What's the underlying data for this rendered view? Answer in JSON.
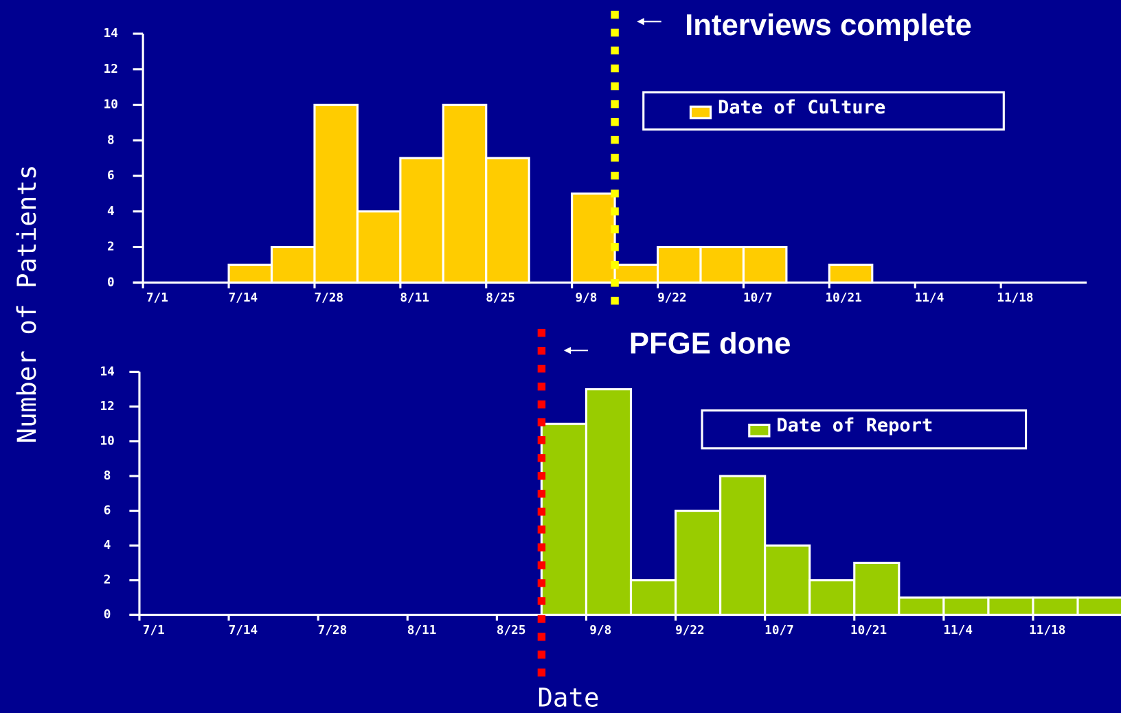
{
  "chart_data": [
    {
      "type": "histogram",
      "ylabel": "Number of Patients",
      "bins": [
        0,
        1,
        2,
        3,
        4,
        5,
        6,
        7,
        8,
        9,
        10,
        11,
        12,
        13,
        14,
        15,
        16,
        17,
        18,
        19,
        20,
        21,
        22
      ],
      "series": [
        {
          "name": "Date of Culture",
          "color": "#ffcc00",
          "values": [
            0,
            0,
            1,
            2,
            10,
            4,
            7,
            10,
            7,
            0,
            5,
            1,
            2,
            2,
            2,
            0,
            1,
            0,
            0,
            0,
            0,
            0
          ]
        }
      ],
      "xlim": [
        0,
        22
      ],
      "ylim": [
        0,
        14
      ],
      "yticks": [
        0,
        2,
        4,
        6,
        8,
        10,
        12,
        14
      ],
      "xticks": [
        {
          "value": 0,
          "label": "7/1"
        },
        {
          "value": 2,
          "label": "7/14"
        },
        {
          "value": 4,
          "label": "7/28"
        },
        {
          "value": 6,
          "label": "8/11"
        },
        {
          "value": 8,
          "label": "8/25"
        },
        {
          "value": 10,
          "label": "9/8"
        },
        {
          "value": 12,
          "label": "9/22"
        },
        {
          "value": 14,
          "label": "10/7"
        },
        {
          "value": 16,
          "label": "10/21"
        },
        {
          "value": 18,
          "label": "11/4"
        },
        {
          "value": 20,
          "label": "11/18"
        }
      ],
      "annotation": {
        "text": "Interviews complete",
        "x": 11,
        "color": "#ffff00"
      }
    },
    {
      "type": "histogram",
      "xlabel": "Date",
      "bins": [
        0,
        1,
        2,
        3,
        4,
        5,
        6,
        7,
        8,
        9,
        10,
        11,
        12,
        13,
        14,
        15,
        16,
        17,
        18,
        19,
        20,
        21,
        22
      ],
      "series": [
        {
          "name": "Date of Report",
          "color": "#99cc00",
          "values": [
            0,
            0,
            0,
            0,
            0,
            0,
            0,
            0,
            0,
            11,
            13,
            2,
            6,
            8,
            4,
            2,
            3,
            1,
            1,
            1,
            1,
            1
          ]
        }
      ],
      "xlim": [
        0,
        22
      ],
      "ylim": [
        0,
        14
      ],
      "yticks": [
        0,
        2,
        4,
        6,
        8,
        10,
        12,
        14
      ],
      "xticks": [
        {
          "value": 0,
          "label": "7/1"
        },
        {
          "value": 2,
          "label": "7/14"
        },
        {
          "value": 4,
          "label": "7/28"
        },
        {
          "value": 6,
          "label": "8/11"
        },
        {
          "value": 8,
          "label": "8/25"
        },
        {
          "value": 10,
          "label": "9/8"
        },
        {
          "value": 12,
          "label": "9/22"
        },
        {
          "value": 14,
          "label": "10/7"
        },
        {
          "value": 16,
          "label": "10/21"
        },
        {
          "value": 18,
          "label": "11/4"
        },
        {
          "value": 20,
          "label": "11/18"
        }
      ],
      "annotation": {
        "text": "PFGE done",
        "x": 9,
        "color": "#ff0000"
      }
    }
  ]
}
